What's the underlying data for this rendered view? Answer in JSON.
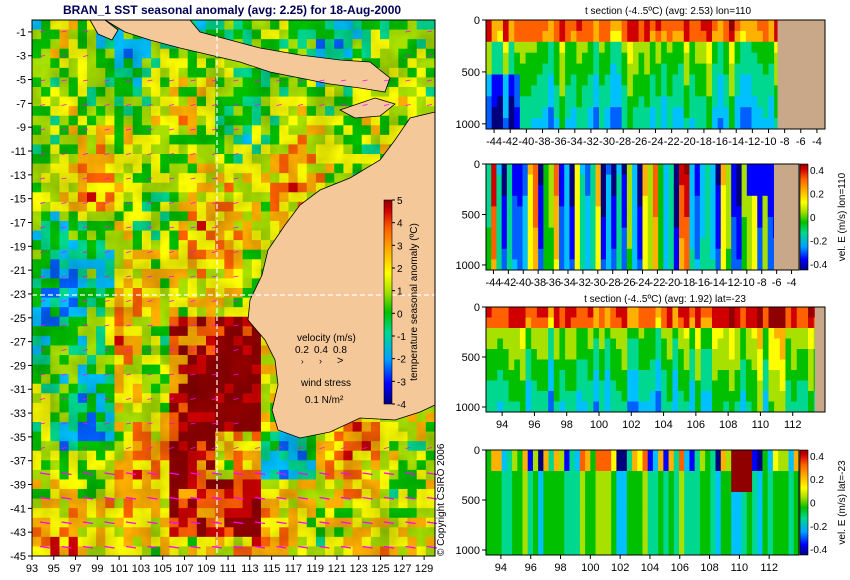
{
  "colors": {
    "land": "#f5c89a",
    "section_fill": "#c8a888",
    "background": "#ffffff",
    "text": "#000000",
    "title": "#000055",
    "vector": "#ff00ff"
  },
  "colormap": [
    "#00007f",
    "#0000ff",
    "#0060ff",
    "#00c0ff",
    "#00d890",
    "#00c000",
    "#a8e000",
    "#ffff00",
    "#ffb000",
    "#ff6000",
    "#d00000",
    "#900000"
  ],
  "chart_data": [
    {
      "type": "heatmap",
      "title": "BRAN_1  SST seasonal anomaly (avg: 2.25) for 18-Aug-2000",
      "xlabel": "",
      "ylabel": "",
      "xlim": [
        93,
        130
      ],
      "ylim": [
        -45,
        0
      ],
      "x_ticks": [
        "93",
        "95",
        "97",
        "99",
        "101",
        "103",
        "105",
        "107",
        "109",
        "111",
        "113",
        "115",
        "117",
        "119",
        "121",
        "123",
        "125",
        "127",
        "129"
      ],
      "y_ticks": [
        "-1",
        "-3",
        "-5",
        "-7",
        "-9",
        "-11",
        "-13",
        "-15",
        "-17",
        "-19",
        "-21",
        "-23",
        "-25",
        "-27",
        "-29",
        "-31",
        "-33",
        "-35",
        "-37",
        "-39",
        "-41",
        "-43",
        "-45"
      ],
      "colorbar": {
        "label": "temperature seasonal anomaly (ºC)",
        "ticks": [
          "5",
          "4",
          "3",
          "2",
          "1",
          "0",
          "-1",
          "-2",
          "-3",
          "-4"
        ],
        "range": [
          -4,
          5
        ]
      },
      "velocity_legend": {
        "title": "velocity (m/s)",
        "values": [
          "0.2",
          "0.4",
          "0.8"
        ]
      },
      "wind_legend": {
        "title": "wind stress",
        "value": "0.1 N/m²"
      },
      "section_lines": {
        "lon": 110,
        "lat": -23
      },
      "copyright": "© Copyright CSIRO 2006"
    },
    {
      "type": "heatmap",
      "title": "t section (-4..5ºC) (avg: 2.53) lon=110",
      "x_ticks": [
        "-44",
        "-42",
        "-40",
        "-38",
        "-36",
        "-34",
        "-32",
        "-30",
        "-28",
        "-26",
        "-24",
        "-22",
        "-20",
        "-18",
        "-16",
        "-14",
        "-12",
        "-10",
        "-8",
        "-6",
        "-4"
      ],
      "y_ticks": [
        "0",
        "500",
        "1000"
      ],
      "xlim": [
        -45,
        -3
      ],
      "ylim": [
        1050,
        0
      ]
    },
    {
      "type": "heatmap",
      "title": "",
      "x_ticks": [
        "-44",
        "-42",
        "-40",
        "-38",
        "-36",
        "-34",
        "-32",
        "-30",
        "-28",
        "-26",
        "-24",
        "-22",
        "-20",
        "-18",
        "-16",
        "-14",
        "-12",
        "-10",
        "-8",
        "-6",
        "-4"
      ],
      "y_ticks": [
        "0",
        "500",
        "1000"
      ],
      "xlim": [
        -45,
        -3
      ],
      "ylim": [
        1050,
        0
      ],
      "colorbar": {
        "label": "vel. E (m/s) lon=110",
        "ticks": [
          "0.4",
          "0.2",
          "0",
          "-0.2",
          "-0.4"
        ],
        "range": [
          -0.45,
          0.45
        ]
      }
    },
    {
      "type": "heatmap",
      "title": "t section (-4..5ºC) (avg: 1.92) lat=-23",
      "x_ticks": [
        "94",
        "96",
        "98",
        "100",
        "102",
        "104",
        "106",
        "108",
        "110",
        "112"
      ],
      "y_ticks": [
        "0",
        "500",
        "1000"
      ],
      "xlim": [
        93,
        114
      ],
      "ylim": [
        1050,
        0
      ]
    },
    {
      "type": "heatmap",
      "title": "",
      "x_ticks": [
        "94",
        "96",
        "98",
        "100",
        "102",
        "104",
        "106",
        "108",
        "110",
        "112"
      ],
      "y_ticks": [
        "0",
        "500",
        "1000"
      ],
      "xlim": [
        93,
        114
      ],
      "ylim": [
        1050,
        0
      ],
      "colorbar": {
        "label": "vel. E (m/s) lat=-23",
        "ticks": [
          "0.4",
          "0.2",
          "0",
          "-0.2",
          "-0.4"
        ],
        "range": [
          -0.45,
          0.45
        ]
      }
    }
  ]
}
